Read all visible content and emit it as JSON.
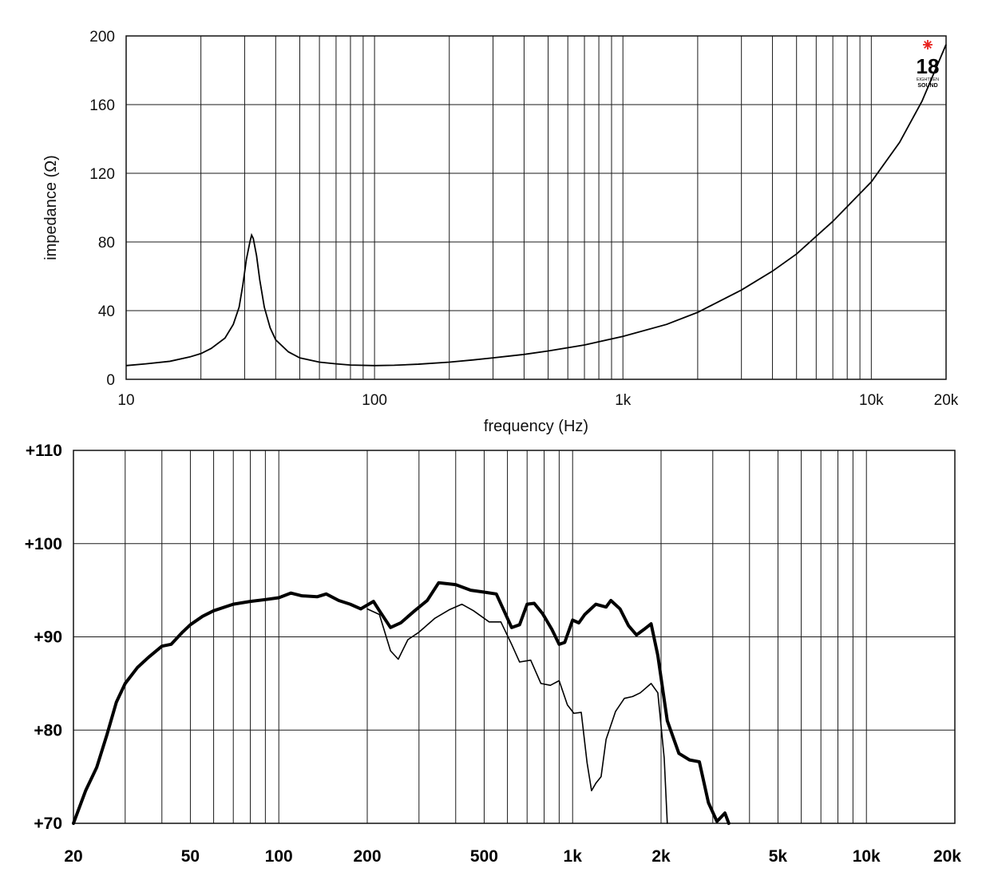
{
  "chart_data": [
    {
      "type": "line",
      "title": "",
      "xlabel": "frequency (Hz)",
      "ylabel": "impedance (Ω)",
      "x_scale": "log",
      "xlim": [
        10,
        20000
      ],
      "ylim": [
        0,
        200
      ],
      "grid": true,
      "x_ticks": [
        10,
        100,
        1000,
        10000,
        20000
      ],
      "x_tick_labels": [
        "10",
        "100",
        "1k",
        "10k",
        "20k"
      ],
      "y_ticks": [
        0,
        40,
        80,
        120,
        160,
        200
      ],
      "y_tick_labels": [
        "0",
        "40",
        "80",
        "120",
        "160",
        "200"
      ],
      "logo": {
        "number": "18",
        "brand_line1": "EIGHTEEN",
        "brand_line2": "SOUND",
        "accent_color": "#e8231f"
      },
      "series": [
        {
          "color": "#000000",
          "points": [
            [
              10,
              8
            ],
            [
              12,
              9
            ],
            [
              15,
              10.5
            ],
            [
              18,
              13
            ],
            [
              20,
              15
            ],
            [
              22,
              18
            ],
            [
              25,
              24
            ],
            [
              27,
              32
            ],
            [
              28.5,
              42
            ],
            [
              29.5,
              55
            ],
            [
              30.5,
              70
            ],
            [
              31.5,
              80
            ],
            [
              32,
              84
            ],
            [
              32.5,
              82
            ],
            [
              33.5,
              72
            ],
            [
              34.5,
              58
            ],
            [
              36,
              42
            ],
            [
              38,
              30
            ],
            [
              40,
              23
            ],
            [
              45,
              16
            ],
            [
              50,
              12.5
            ],
            [
              60,
              10
            ],
            [
              70,
              9
            ],
            [
              80,
              8.3
            ],
            [
              100,
              8
            ],
            [
              120,
              8.2
            ],
            [
              150,
              8.8
            ],
            [
              200,
              10
            ],
            [
              250,
              11.3
            ],
            [
              300,
              12.5
            ],
            [
              400,
              14.5
            ],
            [
              500,
              16.5
            ],
            [
              700,
              20
            ],
            [
              1000,
              25
            ],
            [
              1500,
              32
            ],
            [
              2000,
              39
            ],
            [
              3000,
              52
            ],
            [
              4000,
              63
            ],
            [
              5000,
              73
            ],
            [
              7000,
              92
            ],
            [
              10000,
              115
            ],
            [
              13000,
              138
            ],
            [
              16000,
              162
            ],
            [
              20000,
              195
            ]
          ]
        }
      ]
    },
    {
      "type": "line",
      "title": "",
      "xlabel": "",
      "ylabel": "",
      "x_scale": "log",
      "xlim": [
        20,
        20000
      ],
      "ylim": [
        70,
        110
      ],
      "grid": true,
      "x_ticks": [
        20,
        50,
        100,
        200,
        500,
        1000,
        2000,
        5000,
        10000,
        20000
      ],
      "x_tick_labels": [
        "20",
        "50",
        "100",
        "200",
        "500",
        "1k",
        "2k",
        "5k",
        "10k",
        "20k"
      ],
      "y_ticks": [
        70,
        80,
        90,
        100,
        110
      ],
      "y_tick_labels": [
        "+70",
        "+80",
        "+90",
        "+100",
        "+110"
      ],
      "series": [
        {
          "color": "#000000",
          "line_weight": "thick",
          "points": [
            [
              20,
              70
            ],
            [
              22,
              73.5
            ],
            [
              24,
              76
            ],
            [
              26,
              79.5
            ],
            [
              28,
              83
            ],
            [
              30,
              85
            ],
            [
              33,
              86.7
            ],
            [
              36,
              87.8
            ],
            [
              40,
              89
            ],
            [
              43,
              89.2
            ],
            [
              47,
              90.5
            ],
            [
              50,
              91.3
            ],
            [
              55,
              92.2
            ],
            [
              60,
              92.8
            ],
            [
              70,
              93.5
            ],
            [
              80,
              93.8
            ],
            [
              90,
              94
            ],
            [
              100,
              94.2
            ],
            [
              110,
              94.7
            ],
            [
              120,
              94.4
            ],
            [
              135,
              94.3
            ],
            [
              145,
              94.6
            ],
            [
              160,
              93.9
            ],
            [
              175,
              93.5
            ],
            [
              190,
              93
            ],
            [
              210,
              93.8
            ],
            [
              220,
              92.8
            ],
            [
              240,
              91
            ],
            [
              260,
              91.5
            ],
            [
              290,
              92.8
            ],
            [
              320,
              93.9
            ],
            [
              350,
              95.8
            ],
            [
              400,
              95.6
            ],
            [
              450,
              95
            ],
            [
              500,
              94.8
            ],
            [
              550,
              94.6
            ],
            [
              590,
              92.5
            ],
            [
              620,
              91
            ],
            [
              660,
              91.3
            ],
            [
              700,
              93.5
            ],
            [
              740,
              93.6
            ],
            [
              790,
              92.5
            ],
            [
              850,
              90.8
            ],
            [
              900,
              89.2
            ],
            [
              940,
              89.4
            ],
            [
              1000,
              91.8
            ],
            [
              1050,
              91.5
            ],
            [
              1100,
              92.4
            ],
            [
              1200,
              93.5
            ],
            [
              1300,
              93.2
            ],
            [
              1350,
              93.9
            ],
            [
              1450,
              93
            ],
            [
              1550,
              91.2
            ],
            [
              1650,
              90.2
            ],
            [
              1750,
              90.8
            ],
            [
              1850,
              91.4
            ],
            [
              1950,
              88
            ],
            [
              2100,
              81
            ],
            [
              2300,
              77.5
            ],
            [
              2500,
              76.8
            ],
            [
              2700,
              76.6
            ],
            [
              2900,
              72.2
            ],
            [
              3100,
              70.2
            ],
            [
              3300,
              71.1
            ],
            [
              3400,
              70
            ]
          ]
        },
        {
          "color": "#000000",
          "line_weight": "thin",
          "points": [
            [
              200,
              93
            ],
            [
              220,
              92.4
            ],
            [
              240,
              88.5
            ],
            [
              255,
              87.6
            ],
            [
              275,
              89.7
            ],
            [
              300,
              90.5
            ],
            [
              340,
              92
            ],
            [
              380,
              92.9
            ],
            [
              420,
              93.5
            ],
            [
              460,
              92.8
            ],
            [
              520,
              91.6
            ],
            [
              570,
              91.6
            ],
            [
              620,
              89.2
            ],
            [
              660,
              87.3
            ],
            [
              720,
              87.5
            ],
            [
              780,
              85
            ],
            [
              840,
              84.8
            ],
            [
              900,
              85.3
            ],
            [
              960,
              82.7
            ],
            [
              1010,
              81.8
            ],
            [
              1070,
              81.9
            ],
            [
              1120,
              76.5
            ],
            [
              1160,
              73.5
            ],
            [
              1200,
              74.3
            ],
            [
              1250,
              75
            ],
            [
              1300,
              79
            ],
            [
              1400,
              82
            ],
            [
              1500,
              83.4
            ],
            [
              1600,
              83.6
            ],
            [
              1700,
              84
            ],
            [
              1850,
              85
            ],
            [
              1950,
              84
            ],
            [
              2050,
              77
            ],
            [
              2100,
              70
            ]
          ]
        }
      ]
    }
  ]
}
